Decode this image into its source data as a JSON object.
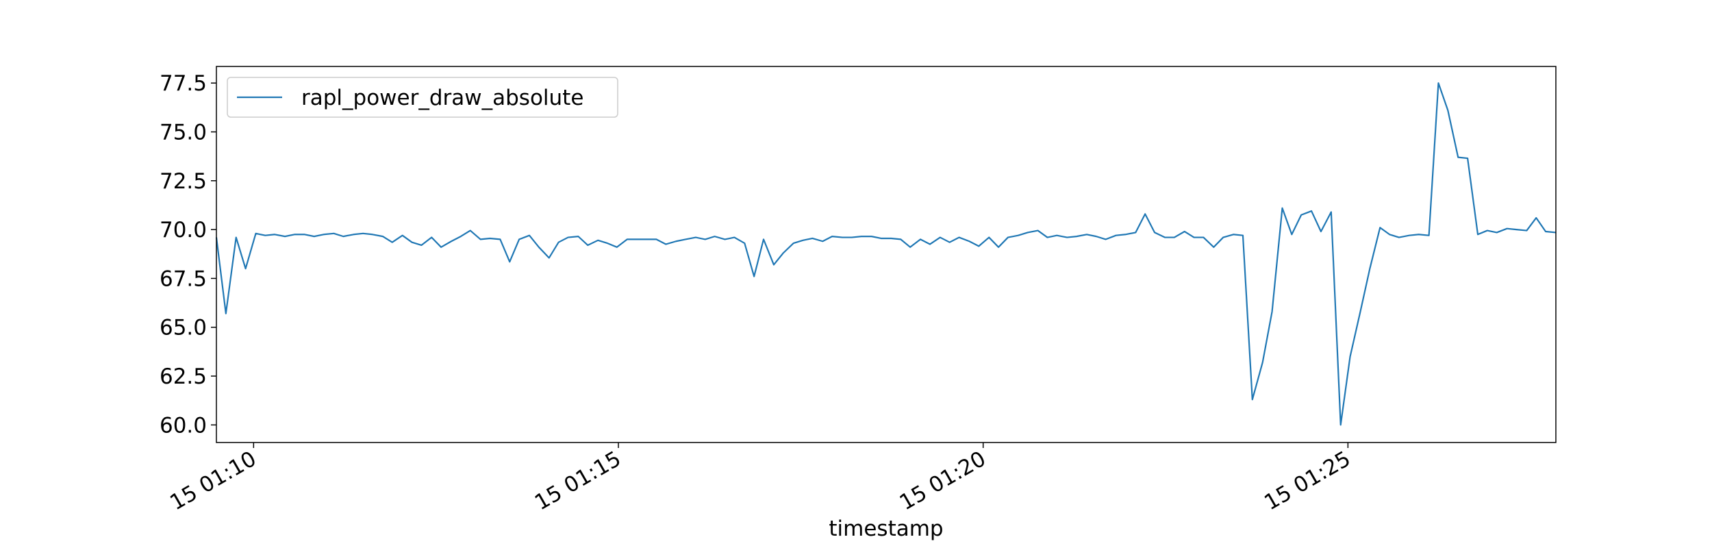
{
  "chart_data": {
    "type": "line",
    "xlabel": "timestamp",
    "x": [
      69.49,
      69.62,
      69.76,
      69.89,
      70.03,
      70.16,
      70.29,
      70.43,
      70.56,
      70.7,
      70.83,
      70.96,
      71.1,
      71.23,
      71.37,
      71.5,
      71.63,
      71.77,
      71.9,
      72.04,
      72.17,
      72.3,
      72.44,
      72.57,
      72.71,
      72.84,
      72.97,
      73.11,
      73.24,
      73.38,
      73.51,
      73.64,
      73.78,
      73.91,
      74.05,
      74.18,
      74.31,
      74.45,
      74.58,
      74.72,
      74.85,
      74.98,
      75.12,
      75.25,
      75.39,
      75.52,
      75.65,
      75.79,
      75.92,
      76.06,
      76.19,
      76.32,
      76.46,
      76.59,
      76.73,
      76.86,
      76.99,
      77.13,
      77.26,
      77.4,
      77.53,
      77.66,
      77.8,
      77.93,
      78.07,
      78.2,
      78.33,
      78.47,
      78.6,
      78.74,
      78.87,
      79.0,
      79.14,
      79.27,
      79.41,
      79.54,
      79.67,
      79.81,
      79.94,
      80.08,
      80.21,
      80.34,
      80.48,
      80.61,
      80.75,
      80.88,
      81.01,
      81.15,
      81.28,
      81.42,
      81.55,
      81.68,
      81.82,
      81.95,
      82.09,
      82.22,
      82.35,
      82.49,
      82.62,
      82.76,
      82.89,
      83.02,
      83.16,
      83.29,
      83.43,
      83.56,
      83.69,
      83.83,
      83.96,
      84.1,
      84.23,
      84.36,
      84.5,
      84.63,
      84.77,
      84.9,
      85.03,
      85.17,
      85.3,
      85.44,
      85.57,
      85.7,
      85.84,
      85.97,
      86.11,
      86.24,
      86.37,
      86.51,
      86.64,
      86.78,
      86.91,
      87.04,
      87.18,
      87.31,
      87.45,
      87.58,
      87.71,
      87.85
    ],
    "series": [
      {
        "name": "rapl_power_draw_absolute",
        "color": "#1f77b4",
        "values": [
          69.6,
          65.7,
          69.6,
          68.0,
          69.8,
          69.7,
          69.75,
          69.65,
          69.75,
          69.75,
          69.65,
          69.75,
          69.8,
          69.65,
          69.75,
          69.8,
          69.75,
          69.65,
          69.35,
          69.7,
          69.35,
          69.2,
          69.6,
          69.1,
          69.4,
          69.65,
          69.95,
          69.5,
          69.55,
          69.5,
          68.35,
          69.5,
          69.7,
          69.1,
          68.55,
          69.35,
          69.6,
          69.65,
          69.2,
          69.45,
          69.3,
          69.1,
          69.5,
          69.5,
          69.5,
          69.5,
          69.25,
          69.4,
          69.5,
          69.6,
          69.5,
          69.65,
          69.5,
          69.6,
          69.3,
          67.6,
          69.5,
          68.2,
          68.8,
          69.3,
          69.45,
          69.55,
          69.4,
          69.65,
          69.6,
          69.6,
          69.65,
          69.65,
          69.55,
          69.55,
          69.5,
          69.1,
          69.5,
          69.25,
          69.6,
          69.35,
          69.6,
          69.4,
          69.15,
          69.6,
          69.1,
          69.6,
          69.7,
          69.85,
          69.95,
          69.6,
          69.7,
          69.6,
          69.65,
          69.75,
          69.65,
          69.5,
          69.7,
          69.75,
          69.85,
          70.8,
          69.85,
          69.6,
          69.6,
          69.9,
          69.6,
          69.6,
          69.1,
          69.6,
          69.75,
          69.7,
          61.3,
          63.2,
          65.8,
          71.1,
          69.75,
          70.75,
          70.95,
          69.9,
          70.9,
          60.0,
          63.5,
          65.8,
          68.0,
          70.1,
          69.75,
          69.6,
          69.7,
          69.75,
          69.7,
          77.5,
          76.1,
          73.7,
          73.65,
          69.75,
          69.95,
          69.85,
          70.05,
          70.0,
          69.95,
          70.6,
          69.9,
          69.85
        ]
      }
    ],
    "xlim": [
      69.49,
      87.85
    ],
    "xticks": [
      {
        "value": 70,
        "label": "15 01:10"
      },
      {
        "value": 75,
        "label": "15 01:15"
      },
      {
        "value": 80,
        "label": "15 01:20"
      },
      {
        "value": 85,
        "label": "15 01:25"
      }
    ],
    "ylim": [
      59.1,
      78.35
    ],
    "yticks": [
      {
        "value": 60,
        "label": "60.0"
      },
      62.5,
      {
        "value": 65,
        "label": "65.0"
      },
      67.5,
      {
        "value": 70,
        "label": "70.0"
      },
      72.5,
      {
        "value": 75,
        "label": "75.0"
      },
      77.5
    ],
    "legend": "upper left"
  }
}
